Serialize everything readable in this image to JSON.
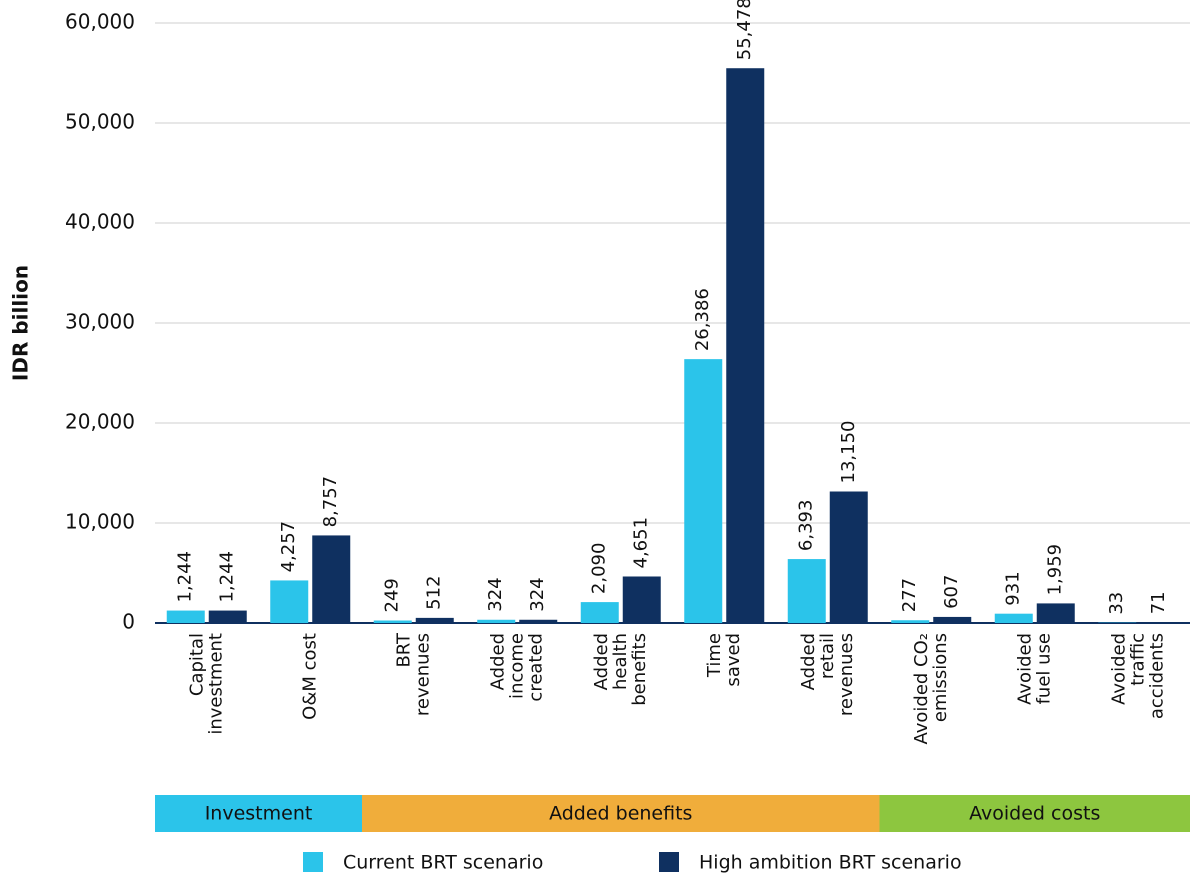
{
  "chart_data": {
    "type": "bar",
    "ylabel": "IDR billion",
    "categories": [
      [
        "Capital",
        "investment"
      ],
      [
        "O&M cost"
      ],
      [
        "BRT",
        "revenues"
      ],
      [
        "Added",
        "income",
        "created"
      ],
      [
        "Added",
        "health",
        "benefits"
      ],
      [
        "Time",
        "saved"
      ],
      [
        "Added",
        "retail",
        "revenues"
      ],
      [
        "Avoided CO₂",
        "emissions"
      ],
      [
        "Avoided",
        "fuel use"
      ],
      [
        "Avoided",
        "traffic",
        "accidents"
      ]
    ],
    "series": [
      {
        "name": "Current BRT scenario",
        "color": "#2bc4ea",
        "values": [
          1244,
          4257,
          249,
          324,
          2090,
          26386,
          6393,
          277,
          931,
          33
        ],
        "value_labels": [
          "1,244",
          "4,257",
          "249",
          "324",
          "2,090",
          "26,386",
          "6,393",
          "277",
          "931",
          "33"
        ]
      },
      {
        "name": "High ambition BRT scenario",
        "color": "#0f3060",
        "values": [
          1244,
          8757,
          512,
          324,
          4651,
          55478,
          13150,
          607,
          1959,
          71
        ],
        "value_labels": [
          "1,244",
          "8,757",
          "512",
          "324",
          "4,651",
          "55,478",
          "13,150",
          "607",
          "1,959",
          "71"
        ]
      }
    ],
    "groups": [
      {
        "name": "Investment",
        "color": "#2bc4ea",
        "count": 2
      },
      {
        "name": "Added benefits",
        "color": "#f0ad3b",
        "count": 5
      },
      {
        "name": "Avoided costs",
        "color": "#8dc63f",
        "count": 3
      }
    ],
    "ylim": [
      0,
      60000
    ],
    "yticks": [
      0,
      {
        "value": 10000,
        "label": "10,000"
      },
      {
        "value": 20000,
        "label": "20,000"
      },
      {
        "value": 30000,
        "label": "30,000"
      },
      {
        "value": 40000,
        "label": "40,000"
      },
      {
        "value": 50000,
        "label": "50,000"
      },
      {
        "value": 60000,
        "label": "60,000"
      }
    ],
    "grid": true,
    "legend": "bottom"
  }
}
